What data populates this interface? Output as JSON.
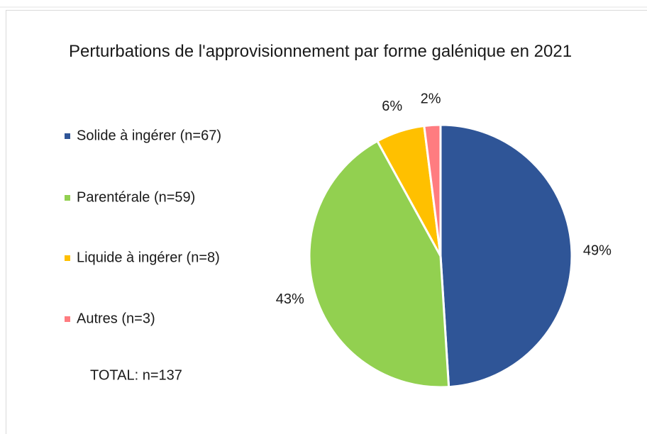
{
  "chart_data": {
    "type": "pie",
    "title": "Perturbations de l'approvisionnement par forme galénique en 2021",
    "categories": [
      "Solide à ingérer (n=67)",
      "Parentérale (n=59)",
      "Liquide à ingérer (n=8)",
      "Autres (n=3)"
    ],
    "values": [
      49,
      43,
      6,
      2
    ],
    "value_labels": [
      "49%",
      "43%",
      "6%",
      "2%"
    ],
    "colors": [
      "#2f5597",
      "#92d050",
      "#ffc000",
      "#ff7c80"
    ],
    "annotation": "TOTAL: n=137",
    "legend": "left"
  }
}
